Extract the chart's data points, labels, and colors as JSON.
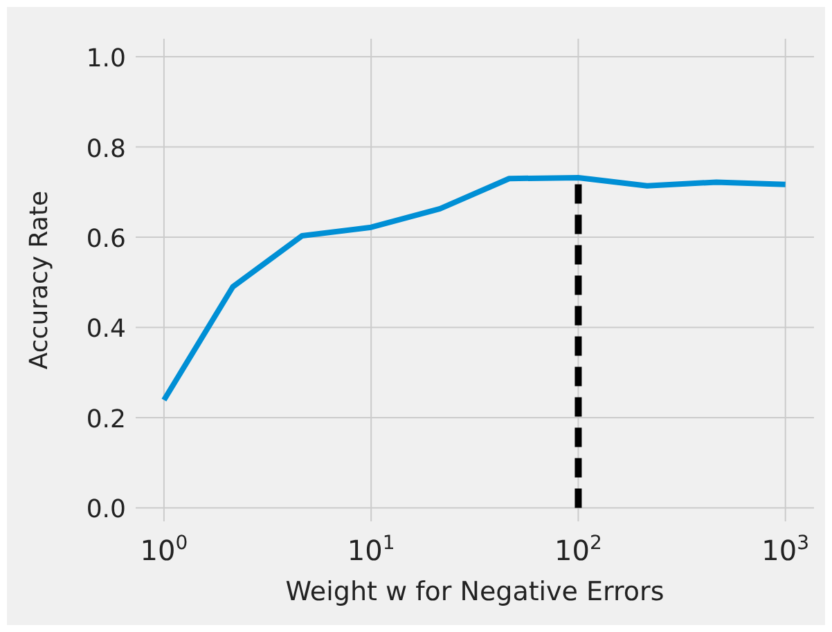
{
  "chart_data": {
    "type": "line",
    "xlabel": "Weight w for Negative Errors",
    "ylabel": "Accuracy Rate",
    "log": "x",
    "grid": true,
    "xlim": [
      0.73,
      1374
    ],
    "xticks": [
      {
        "value": 1,
        "label": "10$^{0}$"
      },
      {
        "value": 10,
        "label": "10$^{1}$"
      },
      {
        "value": 100,
        "label": "10$^{2}$"
      },
      {
        "value": 1000,
        "label": "10$^{3}$"
      }
    ],
    "ylim": [
      -0.03,
      1.04
    ],
    "yticks": [
      {
        "value": 0,
        "label": "0.0"
      },
      {
        "value": 0.2,
        "label": "0.2"
      },
      {
        "value": 0.4,
        "label": "0.4"
      },
      {
        "value": 0.6,
        "label": "0.6"
      },
      {
        "value": 0.8,
        "label": "0.8"
      },
      {
        "value": 1,
        "label": "1.0"
      }
    ],
    "series": [
      {
        "color": "#008fd5",
        "x": [
          1,
          2.15,
          4.64,
          10,
          21.5,
          46.4,
          100,
          215,
          464,
          1000
        ],
        "values": [
          0.239,
          0.49,
          0.603,
          0.622,
          0.663,
          0.73,
          0.732,
          0.714,
          0.722,
          0.717
        ]
      },
      {
        "color": "#000000",
        "line_style": "dashed",
        "x": [
          100,
          100
        ],
        "values": [
          0,
          0.732
        ]
      }
    ]
  }
}
